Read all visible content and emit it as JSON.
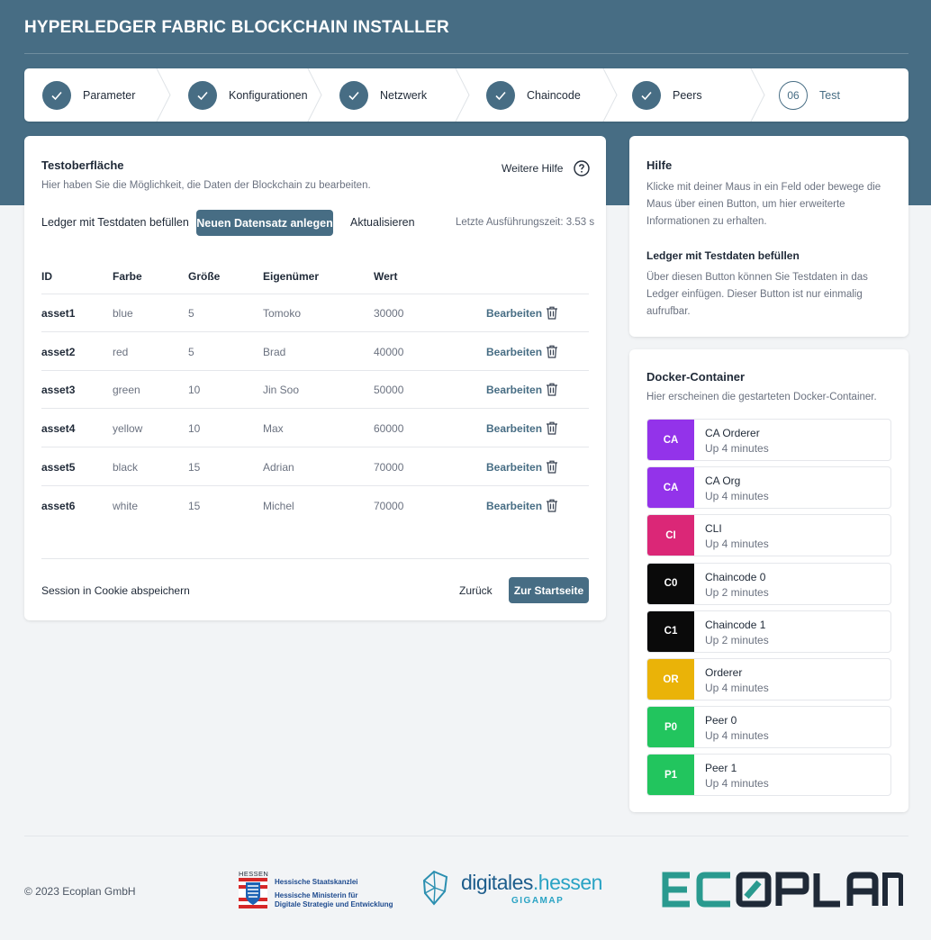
{
  "app_title": "HYPERLEDGER FABRIC BLOCKCHAIN INSTALLER",
  "colors": {
    "primary": "#476d84",
    "ca": "#9333ea",
    "cli": "#db2777",
    "chaincode": "#0a0a0a",
    "orderer": "#eab308",
    "peer": "#22c55e"
  },
  "stepper": {
    "steps": [
      {
        "label": "Parameter",
        "state": "done"
      },
      {
        "label": "Konfigurationen",
        "state": "done"
      },
      {
        "label": "Netzwerk",
        "state": "done"
      },
      {
        "label": "Chaincode",
        "state": "done"
      },
      {
        "label": "Peers",
        "state": "done"
      },
      {
        "label": "Test",
        "number": "06",
        "state": "current"
      }
    ]
  },
  "main": {
    "title": "Testoberfläche",
    "subtitle": "Hier haben Sie die Möglichkeit, die Daten der Blockchain zu bearbeiten.",
    "help_link": "Weitere Hilfe",
    "actions": {
      "fill_ledger": "Ledger mit Testdaten befüllen",
      "new_record": "Neuen Datensatz anlegen",
      "refresh": "Aktualisieren",
      "exec_time": "Letzte Ausführungszeit: 3.53 s"
    },
    "table": {
      "headers": [
        "ID",
        "Farbe",
        "Größe",
        "Eigenümer",
        "Wert"
      ],
      "edit_label": "Bearbeiten",
      "rows": [
        {
          "id": "asset1",
          "color": "blue",
          "size": "5",
          "owner": "Tomoko",
          "value": "30000"
        },
        {
          "id": "asset2",
          "color": "red",
          "size": "5",
          "owner": "Brad",
          "value": "40000"
        },
        {
          "id": "asset3",
          "color": "green",
          "size": "10",
          "owner": "Jin Soo",
          "value": "50000"
        },
        {
          "id": "asset4",
          "color": "yellow",
          "size": "10",
          "owner": "Max",
          "value": "60000"
        },
        {
          "id": "asset5",
          "color": "black",
          "size": "15",
          "owner": "Adrian",
          "value": "70000"
        },
        {
          "id": "asset6",
          "color": "white",
          "size": "15",
          "owner": "Michel",
          "value": "70000"
        }
      ]
    },
    "footer": {
      "session": "Session in Cookie abspeichern",
      "back": "Zurück",
      "home": "Zur Startseite"
    }
  },
  "help": {
    "title": "Hilfe",
    "text": "Klicke mit deiner Maus in ein Feld oder bewege die Maus über einen Button, um hier erweiterte Informationen zu erhalten.",
    "section_title": "Ledger mit Testdaten befüllen",
    "section_text": "Über diesen Button können Sie Testdaten in das Ledger einfügen. Dieser Button ist nur einmalig aufrufbar."
  },
  "docker": {
    "title": "Docker-Container",
    "subtitle": "Hier erscheinen die gestarteten Docker-Container.",
    "containers": [
      {
        "badge": "CA",
        "name": "CA Orderer",
        "status": "Up 4 minutes",
        "color": "#9333ea"
      },
      {
        "badge": "CA",
        "name": "CA Org",
        "status": "Up 4 minutes",
        "color": "#9333ea"
      },
      {
        "badge": "CI",
        "name": "CLI",
        "status": "Up 4 minutes",
        "color": "#db2777"
      },
      {
        "badge": "C0",
        "name": "Chaincode 0",
        "status": "Up 2 minutes",
        "color": "#0a0a0a"
      },
      {
        "badge": "C1",
        "name": "Chaincode 1",
        "status": "Up 2 minutes",
        "color": "#0a0a0a"
      },
      {
        "badge": "OR",
        "name": "Orderer",
        "status": "Up 4 minutes",
        "color": "#eab308"
      },
      {
        "badge": "P0",
        "name": "Peer 0",
        "status": "Up 4 minutes",
        "color": "#22c55e"
      },
      {
        "badge": "P1",
        "name": "Peer 1",
        "status": "Up 4 minutes",
        "color": "#22c55e"
      }
    ]
  },
  "footer": {
    "copyright": "© 2023 Ecoplan GmbH",
    "hessen": {
      "state": "HESSEN",
      "line1": "Hessische Staatskanzlei",
      "line2": "Hessische Ministerin für",
      "line3": "Digitale Strategie und Entwicklung"
    },
    "digitales": {
      "name_a": "digitales",
      "name_b": ".hessen",
      "sub": "GIGAMAP"
    },
    "ecoplan_logo": "ECOPLAN"
  }
}
